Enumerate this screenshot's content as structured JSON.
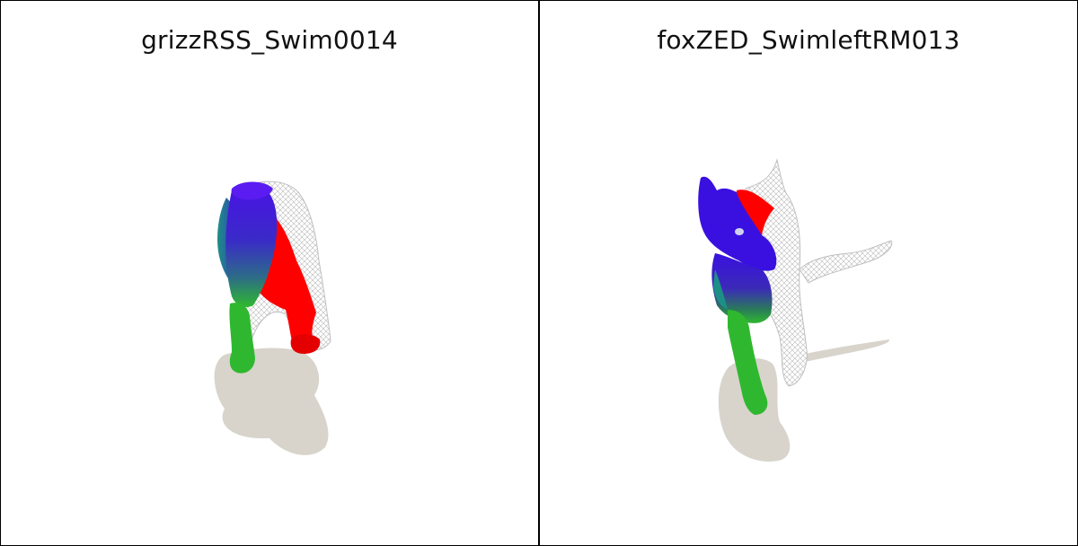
{
  "panels": [
    {
      "title": "grizzRSS_Swim0014"
    },
    {
      "title": "foxZED_SwimleftRM013"
    }
  ],
  "colors": {
    "shadow": "#d8d4cc",
    "segment_red": "#ff0000",
    "segment_blue": "#3a10e0",
    "segment_green": "#2fb82f",
    "segment_teal": "#1d8f86",
    "wireframe": "#c8c8c8"
  }
}
